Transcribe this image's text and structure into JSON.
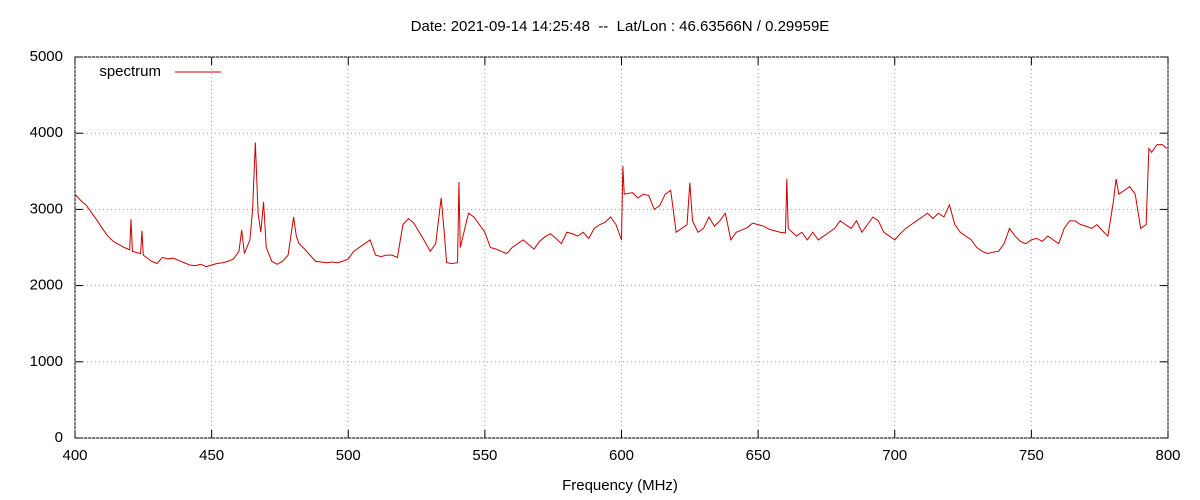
{
  "chart_data": {
    "type": "line",
    "title": "Date: 2021-09-14 14:25:48  --  Lat/Lon : 46.63566N / 0.29959E",
    "x_label": "Frequency (MHz)",
    "xlim": [
      400,
      800
    ],
    "xticks": [
      400,
      450,
      500,
      550,
      600,
      650,
      700,
      750,
      800
    ],
    "ylim": [
      0,
      5000
    ],
    "yticks": [
      0,
      1000,
      2000,
      3000,
      4000,
      5000
    ],
    "grid": true,
    "legend": "top-left",
    "x": [
      400,
      402,
      404,
      406,
      408,
      410,
      412,
      414,
      416,
      418,
      420,
      420.5,
      421,
      424,
      424.5,
      425,
      428,
      430,
      432,
      434,
      436,
      438,
      440,
      442,
      444,
      446,
      448,
      450,
      452,
      454,
      456,
      458,
      460,
      461,
      462,
      464,
      465,
      466,
      467,
      468,
      469,
      470,
      472,
      474,
      476,
      478,
      480,
      481,
      482,
      484,
      486,
      488,
      490,
      492,
      494,
      496,
      498,
      500,
      502,
      504,
      506,
      508,
      510,
      512,
      514,
      516,
      518,
      520,
      522,
      524,
      526,
      528,
      530,
      532,
      534,
      535,
      536,
      538,
      540,
      540.5,
      541,
      542,
      544,
      546,
      548,
      550,
      552,
      554,
      556,
      558,
      560,
      562,
      564,
      566,
      568,
      570,
      572,
      574,
      576,
      578,
      580,
      582,
      584,
      586,
      588,
      590,
      592,
      594,
      596,
      598,
      600,
      600.5,
      601,
      604,
      606,
      608,
      610,
      612,
      614,
      616,
      618,
      620,
      622,
      624,
      625,
      626,
      628,
      630,
      632,
      634,
      636,
      638,
      640,
      642,
      644,
      646,
      648,
      650,
      652,
      654,
      656,
      658,
      660,
      660.5,
      661,
      664,
      666,
      668,
      670,
      672,
      674,
      676,
      678,
      680,
      682,
      684,
      686,
      688,
      690,
      692,
      694,
      696,
      698,
      700,
      702,
      704,
      706,
      708,
      710,
      712,
      714,
      716,
      718,
      720,
      722,
      724,
      726,
      728,
      730,
      732,
      734,
      736,
      738,
      740,
      742,
      744,
      746,
      748,
      750,
      752,
      754,
      756,
      758,
      760,
      762,
      764,
      766,
      768,
      770,
      772,
      774,
      776,
      778,
      780,
      781,
      782,
      784,
      786,
      788,
      790,
      792,
      793,
      794,
      796,
      798,
      799.5
    ],
    "series": [
      {
        "name": "spectrum",
        "color": "#cc0000",
        "values": [
          3200,
          3120,
          3060,
          2960,
          2860,
          2750,
          2650,
          2580,
          2540,
          2500,
          2470,
          2870,
          2450,
          2420,
          2720,
          2400,
          2320,
          2290,
          2370,
          2350,
          2360,
          2330,
          2300,
          2270,
          2260,
          2280,
          2250,
          2270,
          2290,
          2300,
          2320,
          2350,
          2450,
          2730,
          2420,
          2600,
          3000,
          3880,
          2950,
          2700,
          3100,
          2500,
          2320,
          2280,
          2320,
          2400,
          2900,
          2650,
          2550,
          2480,
          2400,
          2320,
          2310,
          2300,
          2310,
          2300,
          2320,
          2350,
          2450,
          2500,
          2550,
          2600,
          2400,
          2380,
          2400,
          2400,
          2370,
          2800,
          2880,
          2820,
          2700,
          2580,
          2450,
          2550,
          3150,
          2750,
          2300,
          2290,
          2300,
          3360,
          2500,
          2650,
          2950,
          2900,
          2800,
          2700,
          2500,
          2480,
          2450,
          2420,
          2500,
          2550,
          2600,
          2540,
          2480,
          2580,
          2640,
          2680,
          2620,
          2550,
          2700,
          2680,
          2650,
          2700,
          2620,
          2750,
          2800,
          2830,
          2900,
          2800,
          2600,
          3570,
          3200,
          3220,
          3150,
          3200,
          3180,
          3000,
          3050,
          3200,
          3250,
          2700,
          2750,
          2800,
          3350,
          2850,
          2700,
          2750,
          2900,
          2780,
          2850,
          2950,
          2600,
          2700,
          2730,
          2760,
          2820,
          2800,
          2780,
          2740,
          2720,
          2700,
          2690,
          3400,
          2750,
          2650,
          2700,
          2600,
          2700,
          2600,
          2650,
          2700,
          2750,
          2850,
          2800,
          2750,
          2850,
          2700,
          2800,
          2900,
          2850,
          2700,
          2650,
          2600,
          2680,
          2750,
          2800,
          2850,
          2900,
          2950,
          2880,
          2950,
          2900,
          3060,
          2800,
          2700,
          2650,
          2600,
          2500,
          2450,
          2420,
          2440,
          2450,
          2550,
          2750,
          2650,
          2580,
          2550,
          2600,
          2620,
          2580,
          2650,
          2600,
          2550,
          2750,
          2850,
          2850,
          2800,
          2780,
          2750,
          2800,
          2720,
          2650,
          3100,
          3400,
          3200,
          3250,
          3300,
          3200,
          2750,
          2800,
          3800,
          3750,
          3850,
          3850,
          3800
        ]
      }
    ]
  }
}
